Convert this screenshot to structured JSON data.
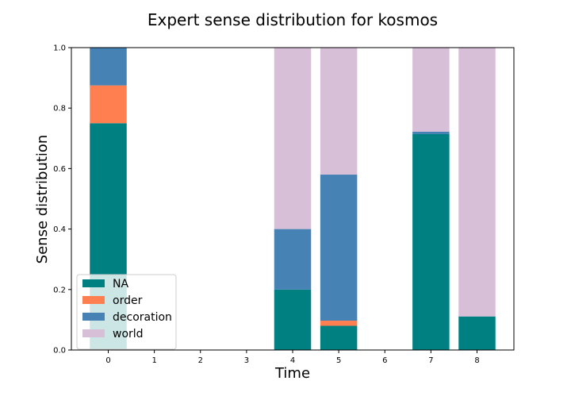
{
  "chart_data": {
    "type": "bar",
    "stacked": true,
    "title": "Expert sense distribution for kosmos",
    "xlabel": "Time",
    "ylabel": "Sense distribution",
    "x": [
      0,
      1,
      2,
      3,
      4,
      5,
      6,
      7,
      8
    ],
    "x_ticks": [
      "0",
      "1",
      "2",
      "3",
      "4",
      "5",
      "6",
      "7",
      "8"
    ],
    "ylim": [
      0,
      1
    ],
    "y_ticks": [
      "0.0",
      "0.2",
      "0.4",
      "0.6",
      "0.8",
      "1.0"
    ],
    "legend_position": "lower-left",
    "grid": false,
    "series": [
      {
        "name": "NA",
        "color": "#008080",
        "values": [
          0.75,
          0,
          0,
          0,
          0.2,
          0.08,
          0,
          0.714,
          0.111
        ]
      },
      {
        "name": "order",
        "color": "#ff7f50",
        "values": [
          0.125,
          0,
          0,
          0,
          0,
          0.017,
          0,
          0,
          0
        ]
      },
      {
        "name": "decoration",
        "color": "#4682b4",
        "values": [
          0.125,
          0,
          0,
          0,
          0.2,
          0.483,
          0,
          0.008,
          0
        ]
      },
      {
        "name": "world",
        "color": "#d8bfd8",
        "values": [
          0,
          0,
          0,
          0,
          0.6,
          0.42,
          0,
          0.278,
          0.889
        ]
      }
    ]
  }
}
